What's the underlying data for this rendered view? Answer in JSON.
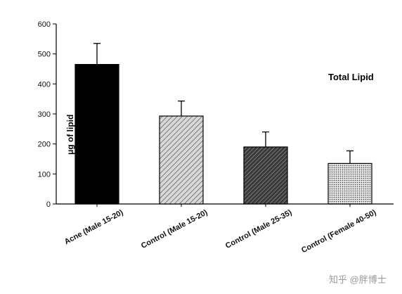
{
  "chart_data": {
    "type": "bar",
    "title": "Total Lipid",
    "ylabel": "μg of lipid",
    "xlabel": "",
    "ylim": [
      0,
      600
    ],
    "yticks": [
      0,
      100,
      200,
      300,
      400,
      500,
      600
    ],
    "categories": [
      "Acne (Male 15-20)",
      "Control (Male 15-20)",
      "Control (Male 25-35)",
      "Control (Female 40-50)"
    ],
    "values": [
      465,
      293,
      190,
      135
    ],
    "errors": [
      70,
      50,
      50,
      42
    ],
    "bar_fills": [
      "solid-black",
      "light-diagonal-hatch",
      "dark-diagonal-hatch",
      "dotted"
    ],
    "grid": false,
    "legend": "none"
  },
  "watermark": "知乎 @胖博士"
}
